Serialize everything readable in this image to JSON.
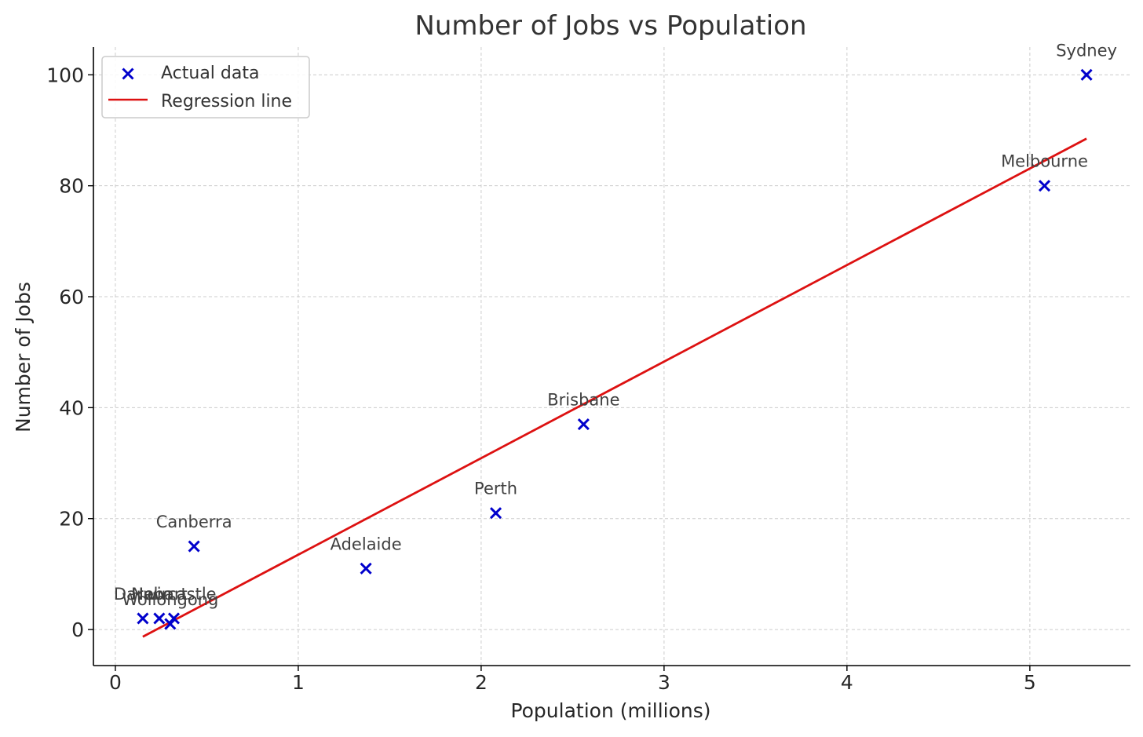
{
  "chart_data": {
    "type": "scatter",
    "title": "Number of Jobs vs Population",
    "xlabel": "Population (millions)",
    "ylabel": "Number of Jobs",
    "xlim": [
      -0.12,
      5.55
    ],
    "ylim": [
      -6.5,
      105
    ],
    "xticks": [
      0,
      1,
      2,
      3,
      4,
      5
    ],
    "yticks": [
      0,
      20,
      40,
      60,
      80,
      100
    ],
    "grid": true,
    "legend_position": "top-left",
    "series": [
      {
        "name": "Actual data",
        "kind": "scatter",
        "marker": "x",
        "color": "#0000cc",
        "points": [
          {
            "label": "Sydney",
            "x": 5.31,
            "y": 100
          },
          {
            "label": "Melbourne",
            "x": 5.08,
            "y": 80
          },
          {
            "label": "Brisbane",
            "x": 2.56,
            "y": 37
          },
          {
            "label": "Perth",
            "x": 2.08,
            "y": 21
          },
          {
            "label": "Adelaide",
            "x": 1.37,
            "y": 11
          },
          {
            "label": "Canberra",
            "x": 0.43,
            "y": 15
          },
          {
            "label": "Darwin",
            "x": 0.15,
            "y": 2
          },
          {
            "label": "Hobart",
            "x": 0.24,
            "y": 2
          },
          {
            "label": "Newcastle",
            "x": 0.32,
            "y": 2
          },
          {
            "label": "Wollongong",
            "x": 0.3,
            "y": 1
          }
        ]
      },
      {
        "name": "Regression line",
        "kind": "line",
        "color": "#dd1111",
        "x": [
          0.15,
          5.31
        ],
        "y": [
          -1.3,
          88.5
        ]
      }
    ]
  }
}
